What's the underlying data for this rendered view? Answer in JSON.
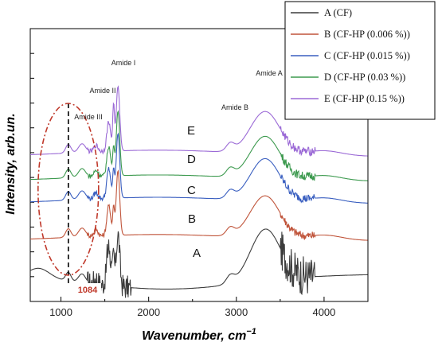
{
  "chart_data": {
    "type": "line",
    "xlabel": "Wavenumber, cm",
    "xlabel_sup": "−1",
    "ylabel": "Intensity, arb.un.",
    "xlim": [
      650,
      4500
    ],
    "xticks": [
      1000,
      2000,
      3000,
      4000
    ],
    "xtick_labels": [
      "1000",
      "2000",
      "3000",
      "4000"
    ],
    "y_units": "arbitrary (spectra vertically offset)",
    "ylim": [
      0,
      11
    ],
    "grid": false,
    "legend_position": "top-right",
    "series": [
      {
        "name": "A (CF)",
        "label": "A",
        "color": "#3c3c3c",
        "offset": 1.0,
        "noise": true
      },
      {
        "name": "B (CF-HP (0.006 %))",
        "label": "B",
        "color": "#c0543a",
        "offset": 2.6
      },
      {
        "name": "C (CF-HP (0.015 %))",
        "label": "C",
        "color": "#3a5fc0",
        "offset": 4.1
      },
      {
        "name": "D (CF-HP (0.03 %))",
        "label": "D",
        "color": "#3d9a4f",
        "offset": 5.0
      },
      {
        "name": "E (CF-HP (0.15 %))",
        "label": "E",
        "color": "#9b6ad6",
        "offset": 6.0
      }
    ],
    "peaks": [
      {
        "name": "Amide III",
        "x": 1240,
        "h": 0.35,
        "w": 40
      },
      {
        "name": "Amide II",
        "x": 1545,
        "h": 1.4,
        "w": 22
      },
      {
        "name": "Amide I",
        "x": 1650,
        "h": 2.6,
        "w": 20
      },
      {
        "name": "Amide B",
        "x": 2930,
        "h": 0.3,
        "w": 45
      },
      {
        "name": "Amide A",
        "x": 3320,
        "h": 1.9,
        "w": 160
      }
    ],
    "annotations": [
      {
        "text": "Amide I",
        "x": 1630,
        "y": 9.8
      },
      {
        "text": "Amide II",
        "x": 1450,
        "y": 9.0
      },
      {
        "text": "Amide III",
        "x": 1190,
        "y": 7.9
      },
      {
        "text": "Amide B",
        "x": 2920,
        "y": 7.9
      },
      {
        "text": "Amide A",
        "x": 3320,
        "y": 9.7
      }
    ],
    "marker": {
      "x": 1084,
      "label": "1084"
    }
  }
}
